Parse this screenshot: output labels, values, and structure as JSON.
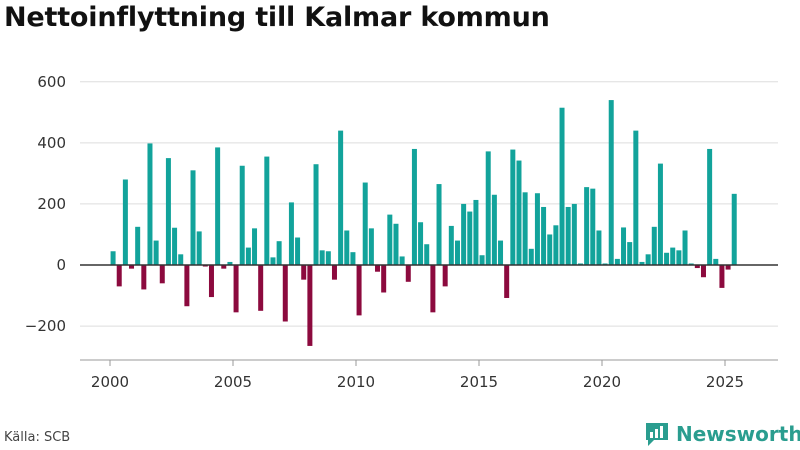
{
  "title": "Nettoinflyttning till Kalmar kommun",
  "source": "Källa: SCB",
  "brand": "Newsworthy",
  "colors": {
    "positive": "#12a39b",
    "negative": "#8c0a3e",
    "grid": "#dddddd",
    "zero": "#333333",
    "brand": "#2a9d8f"
  },
  "chart_data": {
    "type": "bar",
    "title": "Nettoinflyttning till Kalmar kommun",
    "xlabel": "",
    "ylabel": "",
    "ylim": [
      -300,
      650
    ],
    "xlim": [
      1999.25,
      2026.25
    ],
    "yticks": [
      -200,
      0,
      200,
      400,
      600
    ],
    "ytick_labels": [
      "−200",
      "0",
      "200",
      "400",
      "600"
    ],
    "xticks": [
      2000,
      2005,
      2010,
      2015,
      2020,
      2025
    ],
    "xtick_labels": [
      "2000",
      "2005",
      "2010",
      "2015",
      "2020",
      "2025"
    ],
    "grid": true,
    "frequency": "quarterly",
    "start_year": 2000,
    "values": [
      45,
      -70,
      280,
      -12,
      125,
      -80,
      398,
      80,
      -60,
      350,
      122,
      35,
      -135,
      310,
      110,
      -5,
      -105,
      385,
      -12,
      10,
      -155,
      325,
      57,
      120,
      -150,
      355,
      25,
      78,
      -185,
      205,
      90,
      -48,
      -265,
      330,
      48,
      45,
      -48,
      440,
      113,
      42,
      -165,
      270,
      120,
      -22,
      -90,
      165,
      135,
      28,
      -55,
      380,
      140,
      68,
      -155,
      265,
      -70,
      128,
      80,
      200,
      175,
      213,
      32,
      372,
      230,
      80,
      -108,
      378,
      342,
      238,
      53,
      235,
      190,
      100,
      130,
      515,
      190,
      200,
      5,
      255,
      250,
      113,
      5,
      540,
      20,
      123,
      75,
      440,
      10,
      35,
      125,
      332,
      40,
      57,
      48,
      113,
      5,
      -10,
      -40,
      380,
      20,
      -75,
      -15,
      233
    ]
  }
}
